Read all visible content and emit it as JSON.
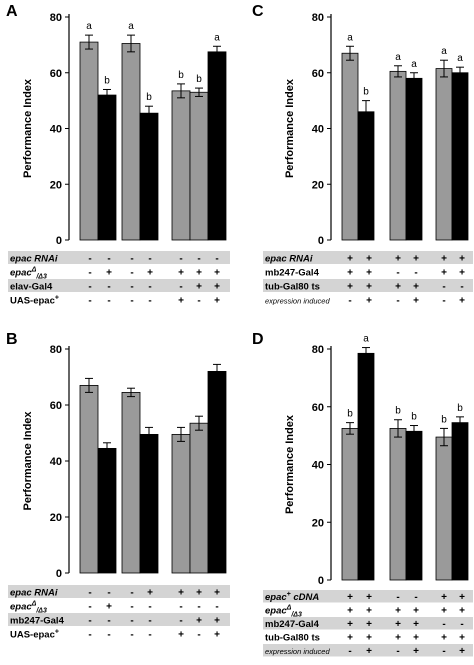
{
  "colors": {
    "control_bar": "#9a9a9a",
    "mutant_bar": "#000000",
    "row_band": "#d4d4d4",
    "axis": "#000000"
  },
  "chart_data": [
    {
      "panel_label": "A",
      "type": "bar",
      "ylabel": "Performance Index",
      "ylim": [
        0,
        80
      ],
      "yticks": [
        0,
        20,
        40,
        60,
        80
      ],
      "groups": [
        {
          "bars": [
            {
              "color": "gray",
              "value": 71,
              "err": 2.5,
              "sig": "a"
            },
            {
              "color": "black",
              "value": 52,
              "err": 2,
              "sig": "b"
            }
          ]
        },
        {
          "bars": [
            {
              "color": "gray",
              "value": 70.5,
              "err": 3,
              "sig": "a"
            },
            {
              "color": "black",
              "value": 45.5,
              "err": 2.5,
              "sig": "b"
            }
          ]
        },
        {
          "bars": [
            {
              "color": "gray",
              "value": 53.5,
              "err": 2.5,
              "sig": "b"
            },
            {
              "color": "gray",
              "value": 53,
              "err": 1.5,
              "sig": "b"
            },
            {
              "color": "black",
              "value": 67.5,
              "err": 2,
              "sig": "a"
            }
          ]
        }
      ],
      "genotype_rows": [
        {
          "label": "epac RNAi",
          "italic": true,
          "superscript": "",
          "subscript": "",
          "shaded": true,
          "groups": [
            [
              "-",
              "-"
            ],
            [
              "-",
              "-"
            ],
            [
              "-",
              "-",
              "-"
            ]
          ]
        },
        {
          "label": "epac",
          "italic": true,
          "superscript": "Δ",
          "subscript": "/Δ3",
          "shaded": false,
          "groups": [
            [
              "-",
              "+"
            ],
            [
              "-",
              "+"
            ],
            [
              "+",
              "+",
              "+"
            ]
          ]
        },
        {
          "label": "elav-Gal4",
          "italic": false,
          "superscript": "",
          "subscript": "",
          "shaded": true,
          "groups": [
            [
              "-",
              "-"
            ],
            [
              "-",
              "-"
            ],
            [
              "-",
              "+",
              "+"
            ]
          ]
        },
        {
          "label": "UAS-epac",
          "italic": false,
          "superscript": "+",
          "subscript": "",
          "shaded": false,
          "groups": [
            [
              "-",
              "-"
            ],
            [
              "-",
              "-"
            ],
            [
              "+",
              "-",
              "+"
            ]
          ]
        }
      ]
    },
    {
      "panel_label": "B",
      "type": "bar",
      "ylabel": "Performance Index",
      "ylim": [
        0,
        80
      ],
      "yticks": [
        0,
        20,
        40,
        60,
        80
      ],
      "groups": [
        {
          "bars": [
            {
              "color": "gray",
              "value": 67,
              "err": 2.5,
              "sig": ""
            },
            {
              "color": "black",
              "value": 44.5,
              "err": 2,
              "sig": ""
            }
          ]
        },
        {
          "bars": [
            {
              "color": "gray",
              "value": 64.5,
              "err": 1.5,
              "sig": ""
            },
            {
              "color": "black",
              "value": 49.5,
              "err": 2.5,
              "sig": ""
            }
          ]
        },
        {
          "bars": [
            {
              "color": "gray",
              "value": 49.5,
              "err": 2.5,
              "sig": ""
            },
            {
              "color": "gray",
              "value": 53.5,
              "err": 2.5,
              "sig": ""
            },
            {
              "color": "black",
              "value": 72,
              "err": 2.5,
              "sig": ""
            }
          ]
        }
      ],
      "genotype_rows": [
        {
          "label": "epac RNAi",
          "italic": true,
          "superscript": "",
          "subscript": "",
          "shaded": true,
          "groups": [
            [
              "-",
              "-"
            ],
            [
              "-",
              "+"
            ],
            [
              "+",
              "+",
              "+"
            ]
          ]
        },
        {
          "label": "epac",
          "italic": true,
          "superscript": "Δ",
          "subscript": "/Δ3",
          "shaded": false,
          "groups": [
            [
              "-",
              "+"
            ],
            [
              "-",
              "-"
            ],
            [
              "-",
              "-",
              "-"
            ]
          ]
        },
        {
          "label": "mb247-Gal4",
          "italic": false,
          "superscript": "",
          "subscript": "",
          "shaded": true,
          "groups": [
            [
              "-",
              "-"
            ],
            [
              "-",
              "-"
            ],
            [
              "-",
              "+",
              "+"
            ]
          ]
        },
        {
          "label": "UAS-epac",
          "italic": false,
          "superscript": "+",
          "subscript": "",
          "shaded": false,
          "groups": [
            [
              "-",
              "-"
            ],
            [
              "-",
              "-"
            ],
            [
              "+",
              "-",
              "+"
            ]
          ]
        }
      ]
    },
    {
      "panel_label": "C",
      "type": "bar",
      "ylabel": "Performance Index",
      "ylim": [
        0,
        80
      ],
      "yticks": [
        0,
        20,
        40,
        60,
        80
      ],
      "groups": [
        {
          "bars": [
            {
              "color": "gray",
              "value": 67,
              "err": 2.5,
              "sig": "a"
            },
            {
              "color": "black",
              "value": 46,
              "err": 4,
              "sig": "b"
            }
          ]
        },
        {
          "bars": [
            {
              "color": "gray",
              "value": 60.5,
              "err": 2,
              "sig": "a"
            },
            {
              "color": "black",
              "value": 58,
              "err": 2,
              "sig": "a"
            }
          ]
        },
        {
          "bars": [
            {
              "color": "gray",
              "value": 61.5,
              "err": 3,
              "sig": "a"
            },
            {
              "color": "black",
              "value": 60,
              "err": 2,
              "sig": "a"
            }
          ]
        }
      ],
      "genotype_rows": [
        {
          "label": "epac RNAi",
          "italic": true,
          "superscript": "",
          "subscript": "",
          "shaded": true,
          "groups": [
            [
              "+",
              "+"
            ],
            [
              "+",
              "+"
            ],
            [
              "+",
              "+"
            ]
          ]
        },
        {
          "label": "mb247-Gal4",
          "italic": false,
          "superscript": "",
          "subscript": "",
          "shaded": false,
          "groups": [
            [
              "+",
              "+"
            ],
            [
              "-",
              "-"
            ],
            [
              "+",
              "+"
            ]
          ]
        },
        {
          "label": "tub-Gal80 ts",
          "italic": false,
          "superscript": "",
          "subscript": "",
          "shaded": true,
          "groups": [
            [
              "+",
              "+"
            ],
            [
              "+",
              "+"
            ],
            [
              "-",
              "-"
            ]
          ]
        },
        {
          "label": "expression induced",
          "italic": true,
          "superscript": "",
          "subscript": "",
          "shaded": false,
          "small": true,
          "groups": [
            [
              "-",
              "+"
            ],
            [
              "-",
              "+"
            ],
            [
              "-",
              "+"
            ]
          ]
        }
      ]
    },
    {
      "panel_label": "D",
      "type": "bar",
      "ylabel": "Performance Index",
      "ylim": [
        0,
        80
      ],
      "yticks": [
        0,
        20,
        40,
        60,
        80
      ],
      "groups": [
        {
          "bars": [
            {
              "color": "gray",
              "value": 52.5,
              "err": 2,
              "sig": "b"
            },
            {
              "color": "black",
              "value": 78.5,
              "err": 2,
              "sig": "a"
            }
          ]
        },
        {
          "bars": [
            {
              "color": "gray",
              "value": 52.5,
              "err": 3,
              "sig": "b"
            },
            {
              "color": "black",
              "value": 51.5,
              "err": 2,
              "sig": "b"
            }
          ]
        },
        {
          "bars": [
            {
              "color": "gray",
              "value": 49.5,
              "err": 3,
              "sig": "b"
            },
            {
              "color": "black",
              "value": 54.5,
              "err": 2,
              "sig": "b"
            }
          ]
        }
      ],
      "genotype_rows": [
        {
          "label": "epac",
          "italic": true,
          "superscript": "+",
          "subscript": "",
          "suffix": " cDNA",
          "shaded": true,
          "groups": [
            [
              "+",
              "+"
            ],
            [
              "-",
              "-"
            ],
            [
              "+",
              "+"
            ]
          ]
        },
        {
          "label": "epac",
          "italic": true,
          "superscript": "Δ",
          "subscript": "/Δ3",
          "shaded": false,
          "groups": [
            [
              "+",
              "+"
            ],
            [
              "+",
              "+"
            ],
            [
              "+",
              "+"
            ]
          ]
        },
        {
          "label": "mb247-Gal4",
          "italic": false,
          "superscript": "",
          "subscript": "",
          "shaded": true,
          "groups": [
            [
              "+",
              "+"
            ],
            [
              "+",
              "+"
            ],
            [
              "-",
              "-"
            ]
          ]
        },
        {
          "label": "tub-Gal80 ts",
          "italic": false,
          "superscript": "",
          "subscript": "",
          "shaded": false,
          "groups": [
            [
              "+",
              "+"
            ],
            [
              "+",
              "+"
            ],
            [
              "+",
              "+"
            ]
          ]
        },
        {
          "label": "expression induced",
          "italic": true,
          "superscript": "",
          "subscript": "",
          "shaded": true,
          "small": true,
          "groups": [
            [
              "-",
              "+"
            ],
            [
              "-",
              "+"
            ],
            [
              "-",
              "+"
            ]
          ]
        }
      ]
    }
  ]
}
